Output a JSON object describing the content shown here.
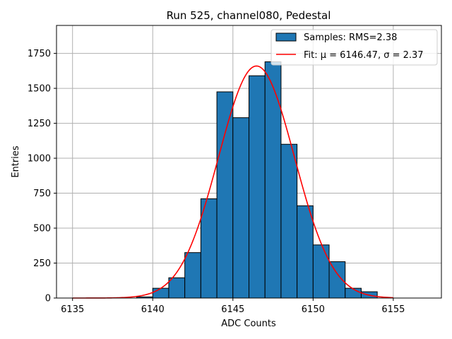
{
  "chart_data": {
    "type": "bar",
    "title": "Run 525, channel080, Pedestal",
    "xlabel": "ADC Counts",
    "ylabel": "Entries",
    "xlim": [
      6134,
      6158
    ],
    "ylim": [
      0,
      1950
    ],
    "xticks": [
      6135,
      6140,
      6145,
      6150,
      6155
    ],
    "yticks": [
      0,
      250,
      500,
      750,
      1000,
      1250,
      1500,
      1750
    ],
    "grid": true,
    "legend_placement": "top-right",
    "bar_color": "#1f77b4",
    "fit_color": "#ff0000",
    "histogram": {
      "name": "Samples: RMS=2.38",
      "bin_edges": [
        6139,
        6140,
        6141,
        6142,
        6143,
        6144,
        6145,
        6146,
        6147,
        6148,
        6149,
        6150,
        6151,
        6152,
        6153,
        6154
      ],
      "counts": [
        8,
        70,
        145,
        325,
        710,
        1475,
        1290,
        1590,
        1690,
        1100,
        660,
        380,
        260,
        70,
        45
      ]
    },
    "fit": {
      "name": "Fit: μ = 6146.47, σ = 2.37",
      "mu": 6146.47,
      "sigma": 2.37,
      "amplitude": 1660,
      "x_range": [
        6135,
        6155
      ]
    }
  }
}
